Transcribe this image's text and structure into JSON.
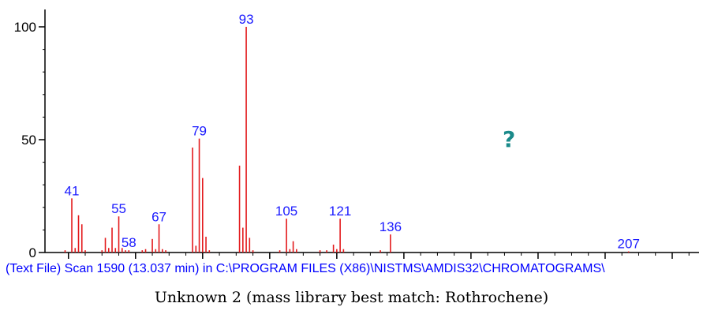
{
  "colors": {
    "peak": "#e31a1c",
    "peak_label": "#1a1aff",
    "axis": "#000000",
    "source_text": "#0000ff",
    "unknown_icon": "#1a8a8a"
  },
  "chart_data": {
    "type": "bar",
    "xlim": [
      33,
      228
    ],
    "ylim": [
      0,
      100
    ],
    "x_ticks": [
      40,
      60,
      80,
      100,
      120,
      140,
      160,
      180,
      200,
      220
    ],
    "y_ticks": [
      0,
      50,
      100
    ],
    "grid": false,
    "peak_labels": [
      {
        "x": 41,
        "text": "41"
      },
      {
        "x": 55,
        "text": "55"
      },
      {
        "x": 58,
        "text": "58"
      },
      {
        "x": 67,
        "text": "67"
      },
      {
        "x": 79,
        "text": "79"
      },
      {
        "x": 93,
        "text": "93"
      },
      {
        "x": 105,
        "text": "105"
      },
      {
        "x": 121,
        "text": "121"
      },
      {
        "x": 136,
        "text": "136"
      },
      {
        "x": 207,
        "text": "207"
      }
    ],
    "peaks": [
      {
        "x": 39,
        "y": 1
      },
      {
        "x": 41,
        "y": 24
      },
      {
        "x": 42,
        "y": 2
      },
      {
        "x": 43,
        "y": 16.5
      },
      {
        "x": 44,
        "y": 12.5
      },
      {
        "x": 45,
        "y": 1
      },
      {
        "x": 50,
        "y": 1
      },
      {
        "x": 51,
        "y": 6.5
      },
      {
        "x": 52,
        "y": 2
      },
      {
        "x": 53,
        "y": 11
      },
      {
        "x": 54,
        "y": 2
      },
      {
        "x": 55,
        "y": 16
      },
      {
        "x": 56,
        "y": 2
      },
      {
        "x": 57,
        "y": 1
      },
      {
        "x": 58,
        "y": 1
      },
      {
        "x": 62,
        "y": 1
      },
      {
        "x": 63,
        "y": 1.5
      },
      {
        "x": 65,
        "y": 6
      },
      {
        "x": 66,
        "y": 1.5
      },
      {
        "x": 67,
        "y": 12.5
      },
      {
        "x": 68,
        "y": 1.5
      },
      {
        "x": 69,
        "y": 1
      },
      {
        "x": 77,
        "y": 46.5
      },
      {
        "x": 78,
        "y": 3
      },
      {
        "x": 79,
        "y": 50.5
      },
      {
        "x": 80,
        "y": 33
      },
      {
        "x": 81,
        "y": 7
      },
      {
        "x": 82,
        "y": 1
      },
      {
        "x": 91,
        "y": 38.5
      },
      {
        "x": 92,
        "y": 11
      },
      {
        "x": 93,
        "y": 100
      },
      {
        "x": 94,
        "y": 6.5
      },
      {
        "x": 95,
        "y": 1
      },
      {
        "x": 103,
        "y": 1
      },
      {
        "x": 105,
        "y": 15
      },
      {
        "x": 106,
        "y": 1.5
      },
      {
        "x": 107,
        "y": 5
      },
      {
        "x": 108,
        "y": 1.5
      },
      {
        "x": 115,
        "y": 1
      },
      {
        "x": 117,
        "y": 1
      },
      {
        "x": 119,
        "y": 3.5
      },
      {
        "x": 120,
        "y": 1.5
      },
      {
        "x": 121,
        "y": 15
      },
      {
        "x": 122,
        "y": 1.5
      },
      {
        "x": 133,
        "y": 1
      },
      {
        "x": 136,
        "y": 8
      },
      {
        "x": 207,
        "y": 0.5
      }
    ]
  },
  "unknown_icon": "?",
  "source_line": "(Text File) Scan 1590 (13.037 min) in C:\\PROGRAM FILES (X86)\\NISTMS\\AMDIS32\\CHROMATOGRAMS\\",
  "caption": "Unknown 2 (mass library best match: Rothrochene)"
}
